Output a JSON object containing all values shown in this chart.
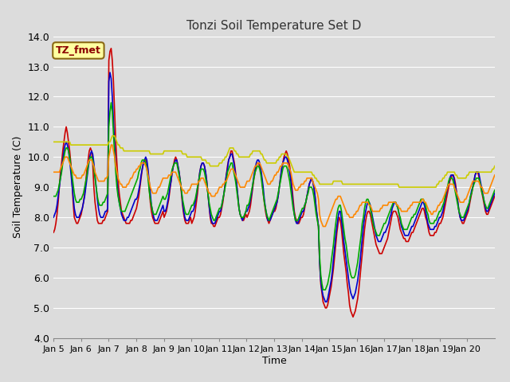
{
  "title": "Tonzi Soil Temperature Set D",
  "xlabel": "Time",
  "ylabel": "Soil Temperature (C)",
  "ylim": [
    4.0,
    14.0
  ],
  "yticks": [
    4.0,
    5.0,
    6.0,
    7.0,
    8.0,
    9.0,
    10.0,
    11.0,
    12.0,
    13.0,
    14.0
  ],
  "annotation_text": "TZ_fmet",
  "annotation_color": "#8B0000",
  "annotation_bg": "#FFFFA0",
  "annotation_border": "#8B6914",
  "bg_color": "#DCDCDC",
  "plot_bg": "#DCDCDC",
  "grid_color": "#FFFFFF",
  "series": {
    "-2cm": {
      "color": "#CC0000",
      "linewidth": 1.2
    },
    "-4cm": {
      "color": "#0000CC",
      "linewidth": 1.2
    },
    "-8cm": {
      "color": "#00AA00",
      "linewidth": 1.2
    },
    "-16cm": {
      "color": "#FF8800",
      "linewidth": 1.2
    },
    "-32cm": {
      "color": "#CCCC00",
      "linewidth": 1.2
    }
  },
  "x_tick_labels": [
    "Jan 5",
    "Jan 6",
    "Jan 7",
    "Jan 8",
    "Jan 9",
    "Jan 10",
    "Jan 11",
    "Jan 12",
    "Jan 13",
    "Jan 14",
    "Jan 15",
    "Jan 16",
    "Jan 17",
    "Jan 18",
    "Jan 19",
    "Jan 20"
  ],
  "n_days": 16,
  "points_per_day": 24,
  "data_2cm": [
    7.5,
    7.6,
    7.8,
    8.1,
    8.5,
    9.0,
    9.5,
    9.8,
    10.2,
    10.5,
    10.8,
    11.0,
    10.8,
    10.5,
    10.2,
    9.8,
    9.2,
    8.5,
    8.0,
    7.9,
    7.8,
    7.8,
    7.9,
    8.0,
    8.1,
    8.3,
    8.5,
    8.8,
    9.2,
    9.6,
    9.9,
    10.2,
    10.3,
    10.2,
    9.8,
    9.0,
    8.5,
    8.2,
    7.9,
    7.8,
    7.8,
    7.8,
    7.8,
    7.9,
    7.9,
    8.0,
    8.1,
    8.2,
    13.2,
    13.5,
    13.6,
    13.2,
    12.5,
    11.5,
    10.5,
    9.8,
    9.2,
    8.8,
    8.5,
    8.2,
    8.1,
    8.0,
    7.9,
    7.8,
    7.8,
    7.8,
    7.8,
    7.9,
    7.9,
    8.0,
    8.1,
    8.2,
    8.3,
    8.5,
    8.7,
    9.0,
    9.3,
    9.6,
    9.8,
    9.9,
    9.9,
    9.8,
    9.5,
    9.0,
    8.5,
    8.2,
    8.0,
    7.9,
    7.8,
    7.8,
    7.8,
    7.8,
    7.9,
    8.0,
    8.1,
    8.2,
    8.0,
    8.1,
    8.2,
    8.4,
    8.6,
    8.9,
    9.2,
    9.5,
    9.7,
    9.9,
    10.0,
    9.9,
    9.7,
    9.5,
    9.2,
    8.8,
    8.4,
    8.1,
    7.9,
    7.8,
    7.8,
    7.8,
    7.9,
    8.0,
    7.8,
    7.9,
    8.0,
    8.2,
    8.5,
    8.8,
    9.2,
    9.5,
    9.7,
    9.8,
    9.8,
    9.7,
    9.5,
    9.2,
    8.8,
    8.4,
    8.0,
    7.8,
    7.8,
    7.7,
    7.7,
    7.8,
    7.9,
    8.0,
    8.0,
    8.1,
    8.3,
    8.5,
    8.8,
    9.1,
    9.4,
    9.7,
    9.9,
    10.0,
    10.2,
    10.2,
    10.0,
    9.8,
    9.5,
    9.1,
    8.7,
    8.3,
    8.1,
    8.0,
    7.9,
    7.9,
    8.0,
    8.1,
    8.0,
    8.1,
    8.2,
    8.4,
    8.7,
    9.0,
    9.3,
    9.5,
    9.7,
    9.8,
    9.8,
    9.7,
    9.5,
    9.2,
    8.8,
    8.5,
    8.2,
    8.0,
    7.9,
    7.8,
    7.9,
    8.0,
    8.1,
    8.2,
    8.2,
    8.3,
    8.5,
    8.7,
    9.0,
    9.3,
    9.6,
    9.8,
    10.0,
    10.1,
    10.2,
    10.1,
    9.9,
    9.7,
    9.4,
    9.0,
    8.6,
    8.2,
    8.0,
    7.9,
    7.8,
    7.8,
    7.9,
    8.0,
    8.0,
    8.1,
    8.3,
    8.5,
    8.7,
    8.9,
    9.1,
    9.2,
    9.3,
    9.2,
    9.0,
    8.7,
    8.3,
    8.0,
    7.7,
    6.5,
    5.8,
    5.5,
    5.2,
    5.1,
    5.0,
    5.0,
    5.1,
    5.3,
    5.5,
    5.7,
    6.0,
    6.3,
    6.7,
    7.1,
    7.5,
    7.8,
    8.0,
    7.9,
    7.6,
    7.2,
    6.8,
    6.5,
    6.2,
    5.8,
    5.5,
    5.1,
    4.9,
    4.8,
    4.7,
    4.8,
    4.9,
    5.1,
    5.3,
    5.6,
    6.0,
    6.4,
    6.8,
    7.2,
    7.6,
    7.9,
    8.1,
    8.2,
    8.2,
    8.1,
    7.9,
    7.7,
    7.5,
    7.3,
    7.1,
    7.0,
    6.9,
    6.8,
    6.8,
    6.8,
    6.9,
    7.0,
    7.1,
    7.2,
    7.3,
    7.5,
    7.7,
    7.9,
    8.1,
    8.2,
    8.2,
    8.2,
    8.1,
    8.0,
    7.8,
    7.6,
    7.5,
    7.4,
    7.3,
    7.3,
    7.2,
    7.2,
    7.2,
    7.3,
    7.4,
    7.5,
    7.5,
    7.6,
    7.7,
    7.8,
    7.9,
    8.0,
    8.1,
    8.2,
    8.3,
    8.3,
    8.2,
    8.0,
    7.9,
    7.7,
    7.5,
    7.4,
    7.4,
    7.4,
    7.4,
    7.5,
    7.5,
    7.6,
    7.7,
    7.8,
    7.8,
    7.9,
    8.0,
    8.2,
    8.4,
    8.6,
    8.8,
    9.0,
    9.2,
    9.3,
    9.4,
    9.4,
    9.3,
    9.1,
    8.8,
    8.5,
    8.2,
    8.0,
    7.9,
    7.8,
    7.8,
    7.9,
    8.0,
    8.1,
    8.2,
    8.4,
    8.6,
    8.8,
    9.0,
    9.2,
    9.4,
    9.5,
    9.5,
    9.4,
    9.2,
    9.0,
    8.8,
    8.6,
    8.4,
    8.2,
    8.1,
    8.1,
    8.2,
    8.3,
    8.4,
    8.5,
    8.6,
    8.7
  ],
  "data_4cm": [
    8.0,
    8.1,
    8.2,
    8.4,
    8.7,
    9.0,
    9.3,
    9.6,
    9.9,
    10.2,
    10.4,
    10.5,
    10.4,
    10.2,
    9.9,
    9.5,
    9.1,
    8.7,
    8.3,
    8.1,
    8.0,
    8.0,
    8.0,
    8.1,
    8.2,
    8.3,
    8.5,
    8.7,
    9.0,
    9.3,
    9.6,
    9.9,
    10.1,
    10.2,
    10.1,
    9.8,
    9.4,
    9.0,
    8.6,
    8.3,
    8.1,
    8.0,
    8.0,
    8.0,
    8.1,
    8.2,
    8.2,
    8.3,
    12.5,
    12.8,
    12.6,
    12.0,
    11.2,
    10.4,
    9.7,
    9.2,
    8.8,
    8.5,
    8.3,
    8.1,
    8.0,
    7.9,
    7.9,
    7.9,
    8.0,
    8.0,
    8.1,
    8.2,
    8.3,
    8.4,
    8.5,
    8.6,
    8.6,
    8.7,
    8.9,
    9.1,
    9.4,
    9.6,
    9.8,
    9.9,
    10.0,
    9.9,
    9.6,
    9.2,
    8.8,
    8.4,
    8.2,
    8.0,
    7.9,
    7.9,
    7.9,
    8.0,
    8.1,
    8.2,
    8.3,
    8.4,
    8.2,
    8.2,
    8.3,
    8.5,
    8.7,
    9.0,
    9.2,
    9.5,
    9.7,
    9.8,
    9.9,
    9.9,
    9.7,
    9.5,
    9.2,
    8.9,
    8.5,
    8.2,
    8.0,
    7.9,
    7.9,
    7.9,
    8.0,
    8.1,
    8.2,
    8.2,
    8.3,
    8.5,
    8.7,
    9.0,
    9.2,
    9.5,
    9.7,
    9.8,
    9.8,
    9.7,
    9.5,
    9.2,
    8.8,
    8.4,
    8.1,
    7.9,
    7.8,
    7.8,
    7.8,
    7.9,
    8.0,
    8.1,
    8.2,
    8.2,
    8.4,
    8.6,
    8.8,
    9.1,
    9.4,
    9.6,
    9.9,
    10.0,
    10.1,
    10.1,
    9.9,
    9.7,
    9.4,
    9.1,
    8.7,
    8.3,
    8.1,
    8.0,
    7.9,
    8.0,
    8.1,
    8.2,
    8.2,
    8.3,
    8.4,
    8.6,
    8.8,
    9.1,
    9.4,
    9.6,
    9.8,
    9.9,
    9.9,
    9.8,
    9.6,
    9.3,
    9.0,
    8.6,
    8.3,
    8.1,
    7.9,
    7.9,
    7.9,
    8.0,
    8.1,
    8.2,
    8.3,
    8.4,
    8.5,
    8.7,
    9.0,
    9.3,
    9.6,
    9.8,
    9.9,
    10.0,
    10.0,
    9.9,
    9.7,
    9.5,
    9.2,
    8.8,
    8.4,
    8.1,
    7.9,
    7.8,
    7.8,
    7.9,
    8.0,
    8.1,
    8.2,
    8.2,
    8.4,
    8.5,
    8.7,
    8.9,
    9.1,
    9.2,
    9.3,
    9.2,
    9.0,
    8.7,
    8.3,
    8.0,
    7.7,
    6.5,
    5.9,
    5.6,
    5.4,
    5.3,
    5.2,
    5.2,
    5.3,
    5.5,
    5.7,
    5.9,
    6.2,
    6.6,
    7.0,
    7.4,
    7.7,
    8.0,
    8.2,
    8.2,
    7.9,
    7.6,
    7.2,
    6.9,
    6.6,
    6.3,
    6.0,
    5.7,
    5.5,
    5.4,
    5.3,
    5.4,
    5.5,
    5.7,
    5.9,
    6.2,
    6.5,
    6.9,
    7.3,
    7.7,
    8.0,
    8.2,
    8.4,
    8.5,
    8.5,
    8.4,
    8.2,
    8.0,
    7.8,
    7.6,
    7.4,
    7.3,
    7.2,
    7.2,
    7.2,
    7.3,
    7.4,
    7.5,
    7.5,
    7.6,
    7.7,
    7.8,
    8.0,
    8.1,
    8.3,
    8.4,
    8.5,
    8.5,
    8.4,
    8.3,
    8.1,
    7.9,
    7.7,
    7.6,
    7.5,
    7.4,
    7.4,
    7.4,
    7.4,
    7.5,
    7.6,
    7.7,
    7.7,
    7.8,
    7.9,
    8.0,
    8.1,
    8.2,
    8.3,
    8.4,
    8.5,
    8.5,
    8.4,
    8.2,
    8.0,
    7.8,
    7.7,
    7.6,
    7.6,
    7.6,
    7.6,
    7.7,
    7.7,
    7.8,
    7.9,
    8.0,
    8.0,
    8.1,
    8.2,
    8.4,
    8.6,
    8.8,
    9.0,
    9.1,
    9.3,
    9.4,
    9.4,
    9.4,
    9.2,
    9.0,
    8.8,
    8.5,
    8.2,
    8.0,
    7.9,
    7.9,
    7.9,
    8.0,
    8.1,
    8.2,
    8.3,
    8.5,
    8.7,
    8.9,
    9.0,
    9.2,
    9.4,
    9.5,
    9.5,
    9.5,
    9.3,
    9.1,
    8.9,
    8.7,
    8.5,
    8.3,
    8.2,
    8.2,
    8.3,
    8.4,
    8.5,
    8.6,
    8.7,
    8.8
  ],
  "data_8cm": [
    8.7,
    8.7,
    8.7,
    8.8,
    8.9,
    9.1,
    9.3,
    9.5,
    9.8,
    10.0,
    10.2,
    10.3,
    10.3,
    10.2,
    10.0,
    9.7,
    9.4,
    9.1,
    8.8,
    8.6,
    8.5,
    8.5,
    8.5,
    8.6,
    8.6,
    8.7,
    8.8,
    9.0,
    9.2,
    9.4,
    9.7,
    9.9,
    10.0,
    10.0,
    9.9,
    9.6,
    9.3,
    9.0,
    8.7,
    8.5,
    8.4,
    8.4,
    8.4,
    8.5,
    8.5,
    8.6,
    8.7,
    8.8,
    11.0,
    11.5,
    11.8,
    11.5,
    10.8,
    10.1,
    9.5,
    9.0,
    8.7,
    8.5,
    8.3,
    8.2,
    8.2,
    8.2,
    8.2,
    8.3,
    8.4,
    8.5,
    8.6,
    8.7,
    8.8,
    8.9,
    9.0,
    9.1,
    9.2,
    9.3,
    9.5,
    9.6,
    9.8,
    9.9,
    9.9,
    9.9,
    9.8,
    9.6,
    9.3,
    8.9,
    8.6,
    8.4,
    8.2,
    8.1,
    8.1,
    8.1,
    8.2,
    8.3,
    8.4,
    8.5,
    8.6,
    8.7,
    8.6,
    8.6,
    8.7,
    8.8,
    9.0,
    9.2,
    9.4,
    9.6,
    9.7,
    9.8,
    9.8,
    9.8,
    9.6,
    9.4,
    9.2,
    8.9,
    8.6,
    8.4,
    8.2,
    8.1,
    8.1,
    8.1,
    8.2,
    8.3,
    8.4,
    8.4,
    8.5,
    8.6,
    8.8,
    9.0,
    9.2,
    9.4,
    9.6,
    9.6,
    9.6,
    9.5,
    9.3,
    9.1,
    8.8,
    8.5,
    8.3,
    8.1,
    8.0,
    7.9,
    7.9,
    8.0,
    8.1,
    8.2,
    8.3,
    8.3,
    8.4,
    8.6,
    8.8,
    9.0,
    9.2,
    9.5,
    9.6,
    9.7,
    9.8,
    9.8,
    9.6,
    9.4,
    9.2,
    8.9,
    8.6,
    8.3,
    8.1,
    8.0,
    8.0,
    8.0,
    8.1,
    8.2,
    8.4,
    8.4,
    8.5,
    8.7,
    8.9,
    9.1,
    9.3,
    9.5,
    9.6,
    9.7,
    9.7,
    9.6,
    9.4,
    9.1,
    8.8,
    8.5,
    8.3,
    8.1,
    8.0,
    7.9,
    8.0,
    8.1,
    8.2,
    8.3,
    8.4,
    8.5,
    8.6,
    8.8,
    9.0,
    9.2,
    9.4,
    9.6,
    9.7,
    9.7,
    9.7,
    9.6,
    9.4,
    9.2,
    8.9,
    8.6,
    8.3,
    8.1,
    7.9,
    7.9,
    7.9,
    8.0,
    8.1,
    8.2,
    8.3,
    8.3,
    8.4,
    8.5,
    8.7,
    8.8,
    9.0,
    9.0,
    9.0,
    8.9,
    8.7,
    8.4,
    8.1,
    7.9,
    7.7,
    6.7,
    6.1,
    5.8,
    5.6,
    5.6,
    5.6,
    5.7,
    5.8,
    6.0,
    6.2,
    6.5,
    6.8,
    7.1,
    7.5,
    7.8,
    8.1,
    8.3,
    8.4,
    8.4,
    8.2,
    7.9,
    7.6,
    7.3,
    7.1,
    6.8,
    6.5,
    6.3,
    6.1,
    6.0,
    6.0,
    6.0,
    6.1,
    6.3,
    6.5,
    6.8,
    7.1,
    7.4,
    7.8,
    8.0,
    8.3,
    8.5,
    8.6,
    8.6,
    8.5,
    8.3,
    8.1,
    7.9,
    7.7,
    7.6,
    7.5,
    7.4,
    7.4,
    7.4,
    7.5,
    7.6,
    7.7,
    7.8,
    7.8,
    7.9,
    8.0,
    8.1,
    8.2,
    8.3,
    8.4,
    8.5,
    8.5,
    8.5,
    8.4,
    8.3,
    8.1,
    8.0,
    7.8,
    7.7,
    7.6,
    7.6,
    7.6,
    7.6,
    7.7,
    7.8,
    7.9,
    8.0,
    8.0,
    8.1,
    8.1,
    8.2,
    8.3,
    8.4,
    8.5,
    8.6,
    8.6,
    8.6,
    8.5,
    8.4,
    8.2,
    8.1,
    7.9,
    7.8,
    7.8,
    7.8,
    7.8,
    7.9,
    7.9,
    8.0,
    8.1,
    8.2,
    8.2,
    8.3,
    8.4,
    8.5,
    8.7,
    8.9,
    9.0,
    9.2,
    9.3,
    9.3,
    9.3,
    9.2,
    9.0,
    8.8,
    8.6,
    8.4,
    8.2,
    8.1,
    8.0,
    8.0,
    8.0,
    8.1,
    8.2,
    8.3,
    8.4,
    8.5,
    8.7,
    8.8,
    9.0,
    9.1,
    9.2,
    9.3,
    9.3,
    9.3,
    9.2,
    9.0,
    8.8,
    8.7,
    8.5,
    8.4,
    8.3,
    8.3,
    8.4,
    8.5,
    8.6,
    8.7,
    8.8,
    8.9
  ],
  "data_16cm": [
    9.5,
    9.5,
    9.5,
    9.5,
    9.5,
    9.5,
    9.6,
    9.7,
    9.8,
    9.9,
    10.0,
    10.0,
    10.0,
    9.9,
    9.8,
    9.7,
    9.6,
    9.5,
    9.4,
    9.4,
    9.3,
    9.3,
    9.3,
    9.3,
    9.3,
    9.4,
    9.4,
    9.5,
    9.6,
    9.7,
    9.8,
    9.9,
    9.9,
    9.9,
    9.8,
    9.7,
    9.5,
    9.4,
    9.3,
    9.2,
    9.2,
    9.2,
    9.2,
    9.2,
    9.2,
    9.3,
    9.3,
    9.4,
    10.0,
    10.2,
    10.4,
    10.4,
    10.2,
    10.0,
    9.7,
    9.5,
    9.3,
    9.2,
    9.1,
    9.1,
    9.0,
    9.0,
    9.0,
    9.0,
    9.1,
    9.1,
    9.2,
    9.3,
    9.3,
    9.4,
    9.5,
    9.5,
    9.6,
    9.6,
    9.7,
    9.7,
    9.8,
    9.8,
    9.8,
    9.8,
    9.7,
    9.6,
    9.4,
    9.2,
    9.0,
    8.9,
    8.8,
    8.8,
    8.8,
    8.8,
    8.9,
    9.0,
    9.0,
    9.1,
    9.2,
    9.3,
    9.3,
    9.3,
    9.3,
    9.3,
    9.4,
    9.4,
    9.4,
    9.5,
    9.5,
    9.5,
    9.5,
    9.4,
    9.3,
    9.2,
    9.1,
    9.0,
    8.9,
    8.9,
    8.8,
    8.8,
    8.8,
    8.9,
    8.9,
    9.0,
    9.1,
    9.1,
    9.1,
    9.1,
    9.1,
    9.1,
    9.2,
    9.2,
    9.3,
    9.3,
    9.3,
    9.2,
    9.1,
    9.0,
    8.9,
    8.8,
    8.8,
    8.7,
    8.7,
    8.7,
    8.7,
    8.8,
    8.8,
    8.9,
    9.0,
    9.0,
    9.0,
    9.1,
    9.1,
    9.2,
    9.2,
    9.3,
    9.4,
    9.5,
    9.6,
    9.6,
    9.6,
    9.5,
    9.4,
    9.3,
    9.2,
    9.1,
    9.0,
    9.0,
    9.0,
    9.0,
    9.0,
    9.1,
    9.2,
    9.2,
    9.2,
    9.3,
    9.4,
    9.5,
    9.6,
    9.7,
    9.7,
    9.8,
    9.8,
    9.8,
    9.7,
    9.6,
    9.5,
    9.4,
    9.3,
    9.2,
    9.1,
    9.1,
    9.1,
    9.2,
    9.2,
    9.3,
    9.4,
    9.4,
    9.5,
    9.5,
    9.6,
    9.7,
    9.7,
    9.8,
    9.8,
    9.8,
    9.8,
    9.8,
    9.7,
    9.6,
    9.5,
    9.3,
    9.1,
    9.0,
    8.9,
    8.9,
    8.9,
    9.0,
    9.0,
    9.1,
    9.1,
    9.1,
    9.2,
    9.2,
    9.3,
    9.3,
    9.3,
    9.3,
    9.3,
    9.2,
    9.1,
    9.0,
    8.9,
    8.8,
    8.6,
    8.1,
    7.9,
    7.8,
    7.7,
    7.7,
    7.7,
    7.8,
    7.9,
    8.0,
    8.1,
    8.2,
    8.3,
    8.4,
    8.5,
    8.6,
    8.6,
    8.7,
    8.7,
    8.7,
    8.6,
    8.5,
    8.4,
    8.3,
    8.2,
    8.1,
    8.1,
    8.0,
    8.0,
    8.0,
    8.0,
    8.1,
    8.1,
    8.2,
    8.2,
    8.3,
    8.4,
    8.4,
    8.5,
    8.5,
    8.5,
    8.5,
    8.5,
    8.5,
    8.4,
    8.4,
    8.3,
    8.2,
    8.2,
    8.2,
    8.2,
    8.2,
    8.2,
    8.2,
    8.3,
    8.3,
    8.4,
    8.4,
    8.4,
    8.4,
    8.4,
    8.5,
    8.5,
    8.5,
    8.5,
    8.5,
    8.5,
    8.5,
    8.4,
    8.4,
    8.3,
    8.3,
    8.2,
    8.2,
    8.2,
    8.2,
    8.2,
    8.2,
    8.3,
    8.3,
    8.4,
    8.4,
    8.5,
    8.5,
    8.5,
    8.5,
    8.5,
    8.5,
    8.5,
    8.5,
    8.6,
    8.6,
    8.5,
    8.5,
    8.4,
    8.3,
    8.2,
    8.2,
    8.1,
    8.1,
    8.2,
    8.2,
    8.2,
    8.3,
    8.4,
    8.4,
    8.5,
    8.5,
    8.6,
    8.7,
    8.8,
    8.9,
    9.0,
    9.1,
    9.1,
    9.1,
    9.1,
    9.1,
    9.0,
    8.9,
    8.8,
    8.7,
    8.6,
    8.5,
    8.5,
    8.5,
    8.5,
    8.6,
    8.6,
    8.7,
    8.8,
    8.9,
    9.0,
    9.1,
    9.2,
    9.2,
    9.2,
    9.2,
    9.2,
    9.2,
    9.1,
    9.0,
    9.0,
    8.9,
    8.8,
    8.8,
    8.8,
    8.8,
    8.9,
    9.0,
    9.1,
    9.2,
    9.3,
    9.4
  ],
  "data_32cm": [
    10.5,
    10.5,
    10.5,
    10.5,
    10.5,
    10.5,
    10.5,
    10.5,
    10.5,
    10.5,
    10.5,
    10.5,
    10.5,
    10.5,
    10.5,
    10.4,
    10.4,
    10.4,
    10.4,
    10.4,
    10.4,
    10.4,
    10.4,
    10.4,
    10.4,
    10.4,
    10.4,
    10.4,
    10.4,
    10.4,
    10.4,
    10.4,
    10.4,
    10.4,
    10.4,
    10.4,
    10.4,
    10.4,
    10.4,
    10.4,
    10.4,
    10.4,
    10.4,
    10.4,
    10.4,
    10.4,
    10.4,
    10.4,
    10.5,
    10.5,
    10.6,
    10.7,
    10.7,
    10.7,
    10.6,
    10.5,
    10.4,
    10.4,
    10.3,
    10.3,
    10.3,
    10.2,
    10.2,
    10.2,
    10.2,
    10.2,
    10.2,
    10.2,
    10.2,
    10.2,
    10.2,
    10.2,
    10.2,
    10.2,
    10.2,
    10.2,
    10.2,
    10.2,
    10.2,
    10.2,
    10.2,
    10.2,
    10.2,
    10.2,
    10.1,
    10.1,
    10.1,
    10.1,
    10.1,
    10.1,
    10.1,
    10.1,
    10.1,
    10.1,
    10.1,
    10.1,
    10.2,
    10.2,
    10.2,
    10.2,
    10.2,
    10.2,
    10.2,
    10.2,
    10.2,
    10.2,
    10.2,
    10.2,
    10.2,
    10.2,
    10.2,
    10.2,
    10.1,
    10.1,
    10.1,
    10.1,
    10.0,
    10.0,
    10.0,
    10.0,
    10.0,
    10.0,
    10.0,
    10.0,
    10.0,
    10.0,
    10.0,
    10.0,
    10.0,
    9.9,
    9.9,
    9.9,
    9.9,
    9.8,
    9.8,
    9.8,
    9.7,
    9.7,
    9.7,
    9.7,
    9.7,
    9.7,
    9.7,
    9.7,
    9.8,
    9.8,
    9.8,
    9.9,
    9.9,
    10.0,
    10.0,
    10.1,
    10.2,
    10.3,
    10.3,
    10.3,
    10.3,
    10.2,
    10.2,
    10.1,
    10.1,
    10.0,
    10.0,
    10.0,
    10.0,
    10.0,
    10.0,
    10.0,
    10.0,
    10.0,
    10.0,
    10.1,
    10.1,
    10.2,
    10.2,
    10.2,
    10.2,
    10.2,
    10.2,
    10.2,
    10.1,
    10.1,
    10.0,
    9.9,
    9.9,
    9.8,
    9.8,
    9.8,
    9.8,
    9.8,
    9.8,
    9.8,
    9.8,
    9.8,
    9.9,
    9.9,
    10.0,
    10.0,
    10.1,
    10.1,
    10.1,
    10.1,
    10.1,
    10.0,
    10.0,
    9.9,
    9.8,
    9.7,
    9.6,
    9.5,
    9.5,
    9.5,
    9.5,
    9.5,
    9.5,
    9.5,
    9.5,
    9.5,
    9.5,
    9.5,
    9.5,
    9.5,
    9.5,
    9.5,
    9.5,
    9.4,
    9.4,
    9.3,
    9.3,
    9.2,
    9.2,
    9.1,
    9.1,
    9.1,
    9.1,
    9.1,
    9.1,
    9.1,
    9.1,
    9.1,
    9.1,
    9.1,
    9.1,
    9.2,
    9.2,
    9.2,
    9.2,
    9.2,
    9.2,
    9.2,
    9.2,
    9.1,
    9.1,
    9.1,
    9.1,
    9.1,
    9.1,
    9.1,
    9.1,
    9.1,
    9.1,
    9.1,
    9.1,
    9.1,
    9.1,
    9.1,
    9.1,
    9.1,
    9.1,
    9.1,
    9.1,
    9.1,
    9.1,
    9.1,
    9.1,
    9.1,
    9.1,
    9.1,
    9.1,
    9.1,
    9.1,
    9.1,
    9.1,
    9.1,
    9.1,
    9.1,
    9.1,
    9.1,
    9.1,
    9.1,
    9.1,
    9.1,
    9.1,
    9.1,
    9.1,
    9.1,
    9.1,
    9.1,
    9.1,
    9.1,
    9.0,
    9.0,
    9.0,
    9.0,
    9.0,
    9.0,
    9.0,
    9.0,
    9.0,
    9.0,
    9.0,
    9.0,
    9.0,
    9.0,
    9.0,
    9.0,
    9.0,
    9.0,
    9.0,
    9.0,
    9.0,
    9.0,
    9.0,
    9.0,
    9.0,
    9.0,
    9.0,
    9.0,
    9.0,
    9.0,
    9.0,
    9.0,
    9.0,
    9.1,
    9.1,
    9.2,
    9.2,
    9.2,
    9.3,
    9.3,
    9.4,
    9.4,
    9.5,
    9.5,
    9.5,
    9.5,
    9.5,
    9.5,
    9.5,
    9.4,
    9.4,
    9.3,
    9.3,
    9.3,
    9.3,
    9.3,
    9.3,
    9.3,
    9.3,
    9.4,
    9.4,
    9.5,
    9.5,
    9.5,
    9.5,
    9.5,
    9.5,
    9.5,
    9.5,
    9.5,
    9.5,
    9.5,
    9.5,
    9.5,
    9.5,
    9.5,
    9.5,
    9.5,
    9.5,
    9.5,
    9.5,
    9.6,
    9.6,
    9.7
  ]
}
